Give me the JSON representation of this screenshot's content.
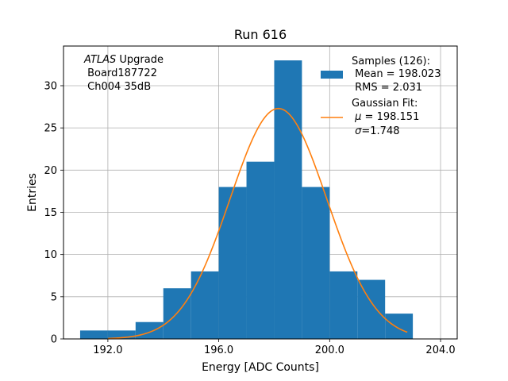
{
  "chart_data": {
    "type": "bar",
    "title": "Run 616",
    "xlabel": "Energy [ADC Counts]",
    "ylabel": "Entries",
    "xlim": [
      190.4,
      204.6
    ],
    "ylim": [
      0,
      34.7
    ],
    "grid": true,
    "x_ticks": [
      192.0,
      196.0,
      200.0,
      204.0
    ],
    "x_tick_labels": [
      "192.0",
      "196.0",
      "200.0",
      "204.0"
    ],
    "y_ticks": [
      0,
      5,
      10,
      15,
      20,
      25,
      30
    ],
    "y_tick_labels": [
      "0",
      "5",
      "10",
      "15",
      "20",
      "25",
      "30"
    ],
    "histogram": {
      "name": "Samples",
      "color": "#1f77b4",
      "bins": [
        {
          "x0": 191.0,
          "x1": 192.0,
          "count": 1
        },
        {
          "x0": 192.0,
          "x1": 193.0,
          "count": 1
        },
        {
          "x0": 193.0,
          "x1": 194.0,
          "count": 2
        },
        {
          "x0": 194.0,
          "x1": 195.0,
          "count": 6
        },
        {
          "x0": 195.0,
          "x1": 196.0,
          "count": 8
        },
        {
          "x0": 196.0,
          "x1": 197.0,
          "count": 18
        },
        {
          "x0": 197.0,
          "x1": 198.0,
          "count": 21
        },
        {
          "x0": 198.0,
          "x1": 199.0,
          "count": 33
        },
        {
          "x0": 199.0,
          "x1": 200.0,
          "count": 18
        },
        {
          "x0": 200.0,
          "x1": 201.0,
          "count": 8
        },
        {
          "x0": 201.0,
          "x1": 202.0,
          "count": 7
        },
        {
          "x0": 202.0,
          "x1": 203.0,
          "count": 3
        }
      ]
    },
    "fit": {
      "name": "Gaussian Fit",
      "color": "#ff7f0e",
      "mu": 198.151,
      "sigma": 1.748,
      "amplitude": 27.3,
      "x_range": [
        192.0,
        202.8
      ]
    },
    "annotation": {
      "line1_italic": "ATLAS",
      "line1_rest": " Upgrade",
      "line2": " Board187722",
      "line3": " Ch004 35dB"
    },
    "legend": {
      "position": "top-right",
      "samples_label": "Samples (126):",
      "samples_mean": " Mean = 198.023",
      "samples_rms": " RMS = 2.031",
      "fit_label": "Gaussian Fit:",
      "fit_mu_sym": "μ",
      "fit_mu_val": " = 198.151",
      "fit_sigma_sym": "σ",
      "fit_sigma_val": "=1.748"
    }
  }
}
